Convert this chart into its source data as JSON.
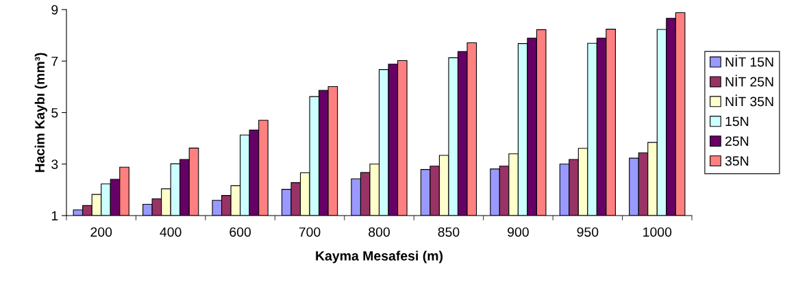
{
  "chart_data": {
    "type": "bar",
    "xlabel": "Kayma Mesafesi (m)",
    "ylabel": "Hacim Kaybı (mm³)",
    "categories": [
      "200",
      "400",
      "600",
      "700",
      "800",
      "850",
      "900",
      "950",
      "1000"
    ],
    "series": [
      {
        "name": "NİT 15N",
        "color": "#9999ff",
        "values": [
          1.22,
          1.44,
          1.59,
          2.02,
          2.43,
          2.79,
          2.81,
          3.0,
          3.23
        ]
      },
      {
        "name": "NİT 25N",
        "color": "#993366",
        "values": [
          1.39,
          1.65,
          1.78,
          2.28,
          2.67,
          2.92,
          2.92,
          3.18,
          3.44
        ]
      },
      {
        "name": "NİT 35N",
        "color": "#ffffcc",
        "values": [
          1.82,
          2.04,
          2.16,
          2.66,
          3.0,
          3.34,
          3.4,
          3.61,
          3.84
        ]
      },
      {
        "name": "15N",
        "color": "#ccffff",
        "values": [
          2.23,
          3.01,
          4.13,
          5.62,
          6.67,
          7.13,
          7.68,
          7.69,
          8.23
        ]
      },
      {
        "name": "25N",
        "color": "#660066",
        "values": [
          2.41,
          3.18,
          4.32,
          5.86,
          6.88,
          7.37,
          7.89,
          7.89,
          8.66
        ]
      },
      {
        "name": "35N",
        "color": "#ff8080",
        "values": [
          2.88,
          3.62,
          4.7,
          6.01,
          7.02,
          7.71,
          8.22,
          8.24,
          8.88
        ]
      }
    ],
    "ylim": [
      1,
      9
    ],
    "yticks": [
      1,
      3,
      5,
      7,
      9
    ],
    "grid": false,
    "legend": "right"
  }
}
